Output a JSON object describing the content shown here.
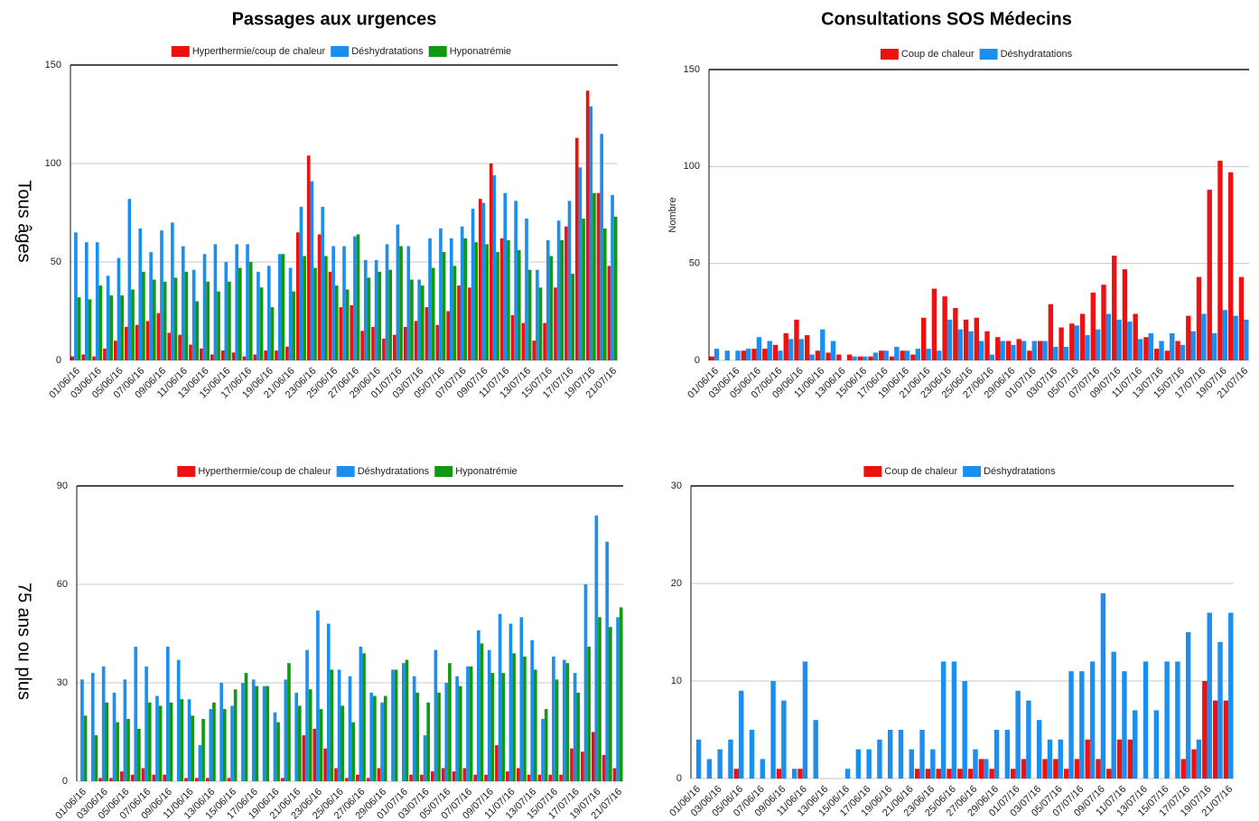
{
  "headings": [
    "Passages aux urgences",
    "Consultations SOS Médecins"
  ],
  "row_labels": [
    "Tous âges",
    "75 ans ou plus"
  ],
  "chart_data": [
    {
      "type": "bar",
      "grid": true,
      "legend": "top",
      "categories": [
        "01/06/16",
        null,
        "03/06/16",
        null,
        "05/06/16",
        null,
        "07/06/16",
        null,
        "09/06/16",
        null,
        "11/06/16",
        null,
        "13/06/16",
        null,
        "15/06/16",
        null,
        "17/06/16",
        null,
        "19/06/16",
        null,
        "21/06/16",
        null,
        "23/06/16",
        null,
        "25/06/16",
        null,
        "27/06/16",
        null,
        "29/06/16",
        null,
        "01/07/16",
        null,
        "03/07/16",
        null,
        "05/07/16",
        null,
        "07/07/16",
        null,
        "09/07/16",
        null,
        "11/07/16",
        null,
        "13/07/16",
        null,
        "15/07/16",
        null,
        "17/07/16",
        null,
        "19/07/16",
        null,
        "21/07/16"
      ],
      "ylim": [
        0,
        150
      ],
      "yticks": [
        0,
        50,
        100,
        150
      ],
      "series": [
        {
          "name": "Hyperthermie/coup de chaleur",
          "color": "#ee1111",
          "values": [
            2,
            3,
            2,
            6,
            10,
            17,
            18,
            20,
            24,
            14,
            13,
            8,
            6,
            3,
            5,
            4,
            2,
            3,
            5,
            5,
            7,
            65,
            104,
            64,
            45,
            27,
            28,
            15,
            17,
            11,
            13,
            17,
            20,
            27,
            18,
            25,
            38,
            37,
            82,
            100,
            62,
            23,
            19,
            10,
            19,
            37,
            68,
            113,
            137,
            85,
            48
          ]
        },
        {
          "name": "Déshydratations",
          "color": "#1a8fef",
          "values": [
            65,
            60,
            60,
            43,
            52,
            82,
            67,
            55,
            66,
            70,
            58,
            46,
            54,
            59,
            50,
            59,
            59,
            45,
            48,
            54,
            47,
            78,
            91,
            78,
            58,
            58,
            63,
            51,
            51,
            59,
            69,
            58,
            41,
            62,
            67,
            62,
            68,
            77,
            80,
            94,
            85,
            81,
            72,
            46,
            61,
            71,
            81,
            98,
            129,
            115,
            84
          ]
        },
        {
          "name": "Hyponatrémie",
          "color": "#119911",
          "values": [
            32,
            31,
            38,
            33,
            33,
            36,
            45,
            41,
            40,
            42,
            45,
            30,
            40,
            35,
            40,
            47,
            50,
            37,
            27,
            54,
            35,
            53,
            47,
            53,
            38,
            36,
            64,
            42,
            45,
            46,
            58,
            41,
            38,
            47,
            55,
            48,
            62,
            60,
            59,
            55,
            61,
            56,
            46,
            37,
            53,
            61,
            44,
            72,
            85,
            67,
            73
          ]
        }
      ]
    },
    {
      "type": "bar",
      "grid": true,
      "legend": "top",
      "ylabel": "Nombre",
      "categories": [
        "01/06/16",
        null,
        "03/06/16",
        null,
        "05/06/16",
        null,
        "07/06/16",
        null,
        "09/06/16",
        null,
        "11/06/16",
        null,
        "13/06/16",
        null,
        "15/06/16",
        null,
        "17/06/16",
        null,
        "19/06/16",
        null,
        "21/06/16",
        null,
        "23/06/16",
        null,
        "25/06/16",
        null,
        "27/06/16",
        null,
        "29/06/16",
        null,
        "01/07/16",
        null,
        "03/07/16",
        null,
        "05/07/16",
        null,
        "07/07/16",
        null,
        "09/07/16",
        null,
        "11/07/16",
        null,
        "13/07/16",
        null,
        "15/07/16",
        null,
        "17/07/16",
        null,
        "19/07/16",
        null,
        "21/07/16"
      ],
      "ylim": [
        0,
        150
      ],
      "yticks": [
        0,
        50,
        100,
        150
      ],
      "series": [
        {
          "name": "Coup de chaleur",
          "color": "#ee1111",
          "values": [
            2,
            0,
            0,
            5,
            6,
            6,
            8,
            14,
            21,
            13,
            5,
            4,
            3,
            3,
            2,
            2,
            5,
            2,
            5,
            3,
            22,
            37,
            33,
            27,
            21,
            22,
            15,
            12,
            10,
            11,
            5,
            10,
            29,
            17,
            19,
            24,
            35,
            39,
            54,
            47,
            24,
            12,
            6,
            5,
            10,
            23,
            43,
            88,
            103,
            97,
            43
          ]
        },
        {
          "name": "Déshydratations",
          "color": "#1a8fef",
          "values": [
            6,
            5,
            5,
            6,
            12,
            10,
            5,
            11,
            11,
            3,
            16,
            10,
            0,
            2,
            2,
            4,
            5,
            7,
            5,
            6,
            6,
            5,
            21,
            16,
            15,
            10,
            3,
            10,
            8,
            10,
            10,
            10,
            7,
            7,
            18,
            13,
            16,
            24,
            21,
            20,
            11,
            14,
            10,
            14,
            8,
            15,
            24,
            14,
            26,
            23,
            21
          ]
        }
      ]
    },
    {
      "type": "bar",
      "grid": true,
      "legend": "top",
      "categories": [
        "01/06/16",
        null,
        "03/06/16",
        null,
        "05/06/16",
        null,
        "07/06/16",
        null,
        "09/06/16",
        null,
        "11/06/16",
        null,
        "13/06/16",
        null,
        "15/06/16",
        null,
        "17/06/16",
        null,
        "19/06/16",
        null,
        "21/06/16",
        null,
        "23/06/16",
        null,
        "25/06/16",
        null,
        "27/06/16",
        null,
        "29/06/16",
        null,
        "01/07/16",
        null,
        "03/07/16",
        null,
        "05/07/16",
        null,
        "07/07/16",
        null,
        "09/07/16",
        null,
        "11/07/16",
        null,
        "13/07/16",
        null,
        "15/07/16",
        null,
        "17/07/16",
        null,
        "19/07/16",
        null,
        "21/07/16"
      ],
      "ylim": [
        0,
        90
      ],
      "yticks": [
        0,
        30,
        60,
        90
      ],
      "series": [
        {
          "name": "Hyperthermie/coup de chaleur",
          "color": "#ee1111",
          "values": [
            0,
            0,
            1,
            1,
            3,
            2,
            4,
            2,
            2,
            0,
            1,
            1,
            1,
            0,
            1,
            0,
            0,
            0,
            0,
            1,
            0,
            14,
            16,
            10,
            4,
            1,
            2,
            1,
            4,
            0,
            0,
            2,
            2,
            3,
            4,
            3,
            4,
            2,
            2,
            11,
            3,
            4,
            2,
            2,
            2,
            2,
            10,
            9,
            15,
            8,
            4
          ]
        },
        {
          "name": "Déshydratations",
          "color": "#1a8fef",
          "values": [
            31,
            33,
            35,
            27,
            31,
            41,
            35,
            26,
            41,
            37,
            25,
            11,
            22,
            30,
            23,
            30,
            31,
            29,
            21,
            31,
            27,
            40,
            52,
            48,
            34,
            32,
            41,
            27,
            24,
            34,
            36,
            32,
            14,
            40,
            30,
            32,
            35,
            46,
            40,
            51,
            48,
            50,
            43,
            19,
            38,
            37,
            33,
            60,
            81,
            73,
            50
          ]
        },
        {
          "name": "Hyponatrémie",
          "color": "#119911",
          "values": [
            20,
            14,
            24,
            18,
            19,
            16,
            24,
            23,
            24,
            25,
            20,
            19,
            24,
            22,
            28,
            33,
            29,
            29,
            18,
            36,
            23,
            28,
            22,
            34,
            23,
            18,
            39,
            26,
            26,
            34,
            37,
            27,
            24,
            27,
            36,
            29,
            35,
            42,
            33,
            33,
            39,
            38,
            34,
            22,
            31,
            36,
            27,
            41,
            50,
            47,
            53
          ]
        }
      ]
    },
    {
      "type": "bar",
      "grid": true,
      "legend": "top",
      "categories": [
        "01/06/16",
        null,
        "03/06/16",
        null,
        "05/06/16",
        null,
        "07/06/16",
        null,
        "09/06/16",
        null,
        "11/06/16",
        null,
        "13/06/16",
        null,
        "15/06/16",
        null,
        "17/06/16",
        null,
        "19/06/16",
        null,
        "21/06/16",
        null,
        "23/06/16",
        null,
        "25/06/16",
        null,
        "27/06/16",
        null,
        "29/06/16",
        null,
        "01/07/16",
        null,
        "03/07/16",
        null,
        "05/07/16",
        null,
        "07/07/16",
        null,
        "09/07/16",
        null,
        "11/07/16",
        null,
        "13/07/16",
        null,
        "15/07/16",
        null,
        "17/07/16",
        null,
        "19/07/16",
        null,
        "21/07/16"
      ],
      "ylim": [
        0,
        30
      ],
      "yticks": [
        0,
        10,
        20,
        30
      ],
      "series": [
        {
          "name": "Coup de chaleur",
          "color": "#ee1111",
          "values": [
            0,
            0,
            0,
            0,
            1,
            0,
            0,
            0,
            1,
            0,
            1,
            0,
            0,
            0,
            0,
            0,
            0,
            0,
            0,
            0,
            0,
            1,
            1,
            1,
            1,
            1,
            1,
            2,
            1,
            0,
            1,
            2,
            0,
            2,
            2,
            1,
            2,
            4,
            2,
            1,
            4,
            4,
            0,
            0,
            0,
            0,
            2,
            3,
            10,
            8,
            8
          ]
        },
        {
          "name": "Déshydratations",
          "color": "#1a8fef",
          "values": [
            4,
            2,
            3,
            4,
            9,
            5,
            2,
            10,
            8,
            1,
            12,
            6,
            0,
            0,
            1,
            3,
            3,
            4,
            5,
            5,
            3,
            5,
            3,
            12,
            12,
            10,
            3,
            2,
            5,
            5,
            9,
            8,
            6,
            4,
            4,
            11,
            11,
            12,
            19,
            13,
            11,
            7,
            12,
            7,
            12,
            12,
            15,
            4,
            17,
            14,
            17
          ]
        }
      ]
    }
  ]
}
